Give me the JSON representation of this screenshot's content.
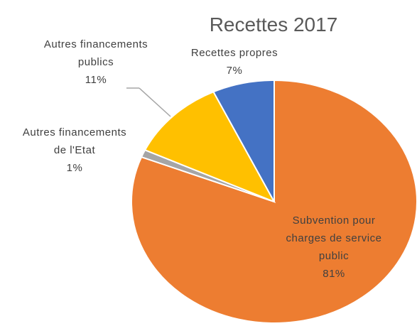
{
  "chart_data": {
    "type": "pie",
    "title": "Recettes 2017",
    "categories": [
      "Subvention pour charges de service public",
      "Autres financements de l'Etat",
      "Autres financements publics",
      "Recettes propres"
    ],
    "values": [
      81,
      1,
      11,
      7
    ],
    "value_labels": [
      "81%",
      "1%",
      "11%",
      "7%"
    ],
    "colors": [
      "#ed7d31",
      "#a5a5a5",
      "#ffc000",
      "#4472c4"
    ]
  }
}
